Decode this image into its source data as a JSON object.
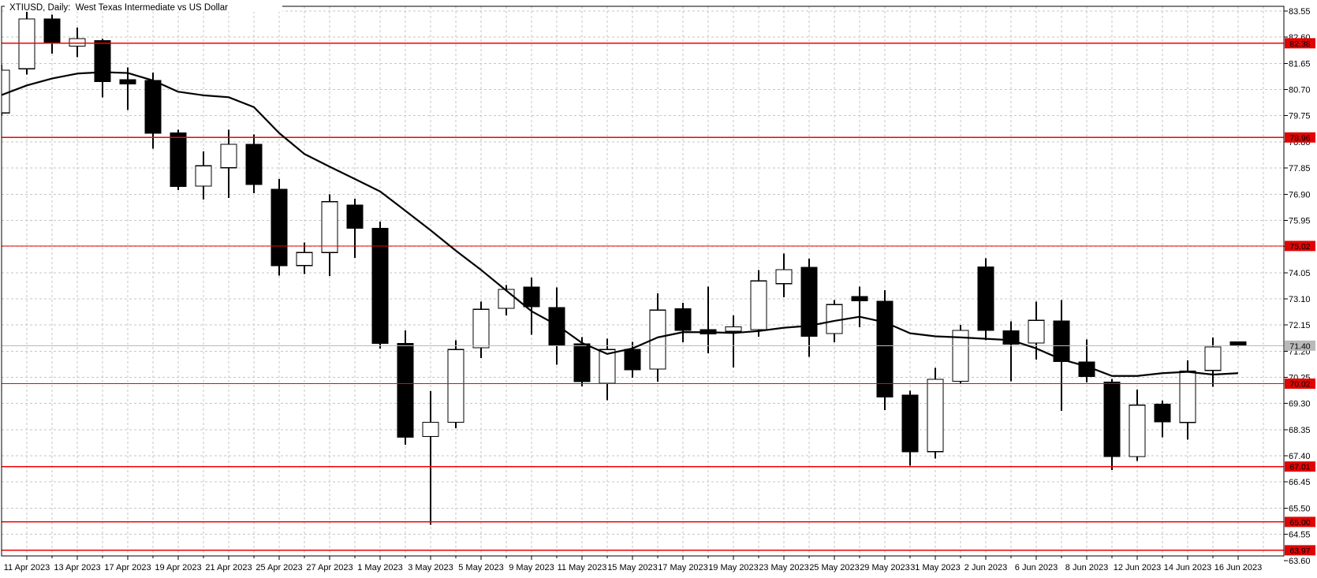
{
  "title": "XTIUSD, Daily:  West Texas Intermediate vs US Dollar",
  "header": {
    "symbol": "XTIUSD",
    "period": "Daily",
    "description": "West Texas Intermediate vs US Dollar"
  },
  "colors": {
    "background": "#ffffff",
    "grid": "#c6c6c6",
    "border": "#000000",
    "bull_candle_fill": "#ffffff",
    "bear_candle_fill": "#000000",
    "candle_outline": "#000000",
    "ma_line": "#000000",
    "level_line": "#f20202",
    "level_badge": "#e00505",
    "current_price_line": "#b9b9b9",
    "current_price_badge": "#b9b9b9",
    "badge_text": "#ffffff",
    "axis_text": "#000000"
  },
  "chart_data": {
    "type": "candlestick",
    "title": "XTIUSD, Daily:  West Texas Intermediate vs US Dollar",
    "symbol": "XTIUSD",
    "timeframe": "Daily",
    "grid": "dashed, every candle vertically and every 0.95 horizontally",
    "legend_position": "none",
    "ylim": [
      63.77,
      83.72
    ],
    "y_tick_step": 0.95,
    "y_tick_labels": [
      "83.55",
      "82.60",
      "81.65",
      "80.70",
      "79.75",
      "78.80",
      "77.85",
      "76.90",
      "75.95",
      "75.00",
      "74.05",
      "73.10",
      "72.15",
      "71.20",
      "70.25",
      "69.30",
      "68.35",
      "67.40",
      "66.45",
      "65.50",
      "64.55",
      "63.60"
    ],
    "x_labels": [
      "11 Apr 2023",
      "13 Apr 2023",
      "17 Apr 2023",
      "19 Apr 2023",
      "21 Apr 2023",
      "25 Apr 2023",
      "27 Apr 2023",
      "1 May 2023",
      "3 May 2023",
      "5 May 2023",
      "9 May 2023",
      "11 May 2023",
      "15 May 2023",
      "17 May 2023",
      "19 May 2023",
      "23 May 2023",
      "25 May 2023",
      "29 May 2023",
      "31 May 2023",
      "2 Jun 2023",
      "6 Jun 2023",
      "8 Jun 2023",
      "12 Jun 2023",
      "14 Jun 2023",
      "16 Jun 2023"
    ],
    "x_labels_note": "labels mark every second candle starting at candle index 1; candle index 0 is a partially visible candle clipped at the left edge",
    "level_lines": [
      {
        "label": "82.38",
        "price": 82.38
      },
      {
        "label": "78.96",
        "price": 78.96
      },
      {
        "label": "75.02",
        "price": 75.02
      },
      {
        "label": "70.02",
        "price": 70.02
      },
      {
        "label": "67.01",
        "price": 67.01
      },
      {
        "label": "65.00",
        "price": 65.0
      },
      {
        "label": "63.97",
        "price": 63.97
      }
    ],
    "current_price": {
      "label": "71.40",
      "price": 71.4
    },
    "ma_series": {
      "name": "moving-average",
      "values": [
        80.5,
        80.85,
        81.1,
        81.28,
        81.33,
        81.3,
        81.03,
        80.62,
        80.49,
        80.42,
        80.06,
        79.12,
        78.36,
        77.9,
        77.45,
        77.0,
        76.3,
        75.59,
        74.85,
        74.15,
        73.4,
        72.65,
        72.15,
        71.5,
        71.1,
        71.3,
        71.7,
        71.89,
        71.89,
        71.86,
        71.93,
        72.05,
        72.12,
        72.3,
        72.45,
        72.25,
        71.85,
        71.74,
        71.7,
        71.65,
        71.6,
        71.3,
        70.9,
        70.65,
        70.3,
        70.3,
        70.4,
        70.45,
        70.35,
        70.4
      ]
    },
    "candles": [
      {
        "o": 79.85,
        "h": 81.6,
        "l": 79.75,
        "c": 81.4,
        "partial": true
      },
      {
        "o": 81.45,
        "h": 83.53,
        "l": 81.25,
        "c": 83.26
      },
      {
        "o": 83.26,
        "h": 83.42,
        "l": 82.0,
        "c": 82.38
      },
      {
        "o": 82.28,
        "h": 82.95,
        "l": 81.88,
        "c": 82.55
      },
      {
        "o": 82.48,
        "h": 82.55,
        "l": 80.42,
        "c": 80.99
      },
      {
        "o": 81.05,
        "h": 81.5,
        "l": 79.95,
        "c": 80.9
      },
      {
        "o": 81.03,
        "h": 81.31,
        "l": 78.56,
        "c": 79.12
      },
      {
        "o": 79.12,
        "h": 79.24,
        "l": 77.05,
        "c": 77.18
      },
      {
        "o": 77.19,
        "h": 78.45,
        "l": 76.7,
        "c": 77.93
      },
      {
        "o": 77.86,
        "h": 79.24,
        "l": 76.76,
        "c": 78.71
      },
      {
        "o": 78.71,
        "h": 79.07,
        "l": 76.93,
        "c": 77.25
      },
      {
        "o": 77.07,
        "h": 77.45,
        "l": 73.95,
        "c": 74.31
      },
      {
        "o": 74.31,
        "h": 75.15,
        "l": 74.0,
        "c": 74.78
      },
      {
        "o": 74.78,
        "h": 76.9,
        "l": 73.93,
        "c": 76.63
      },
      {
        "o": 76.51,
        "h": 76.73,
        "l": 74.59,
        "c": 75.67
      },
      {
        "o": 75.66,
        "h": 75.9,
        "l": 71.3,
        "c": 71.48
      },
      {
        "o": 71.48,
        "h": 71.95,
        "l": 67.8,
        "c": 68.08
      },
      {
        "o": 68.1,
        "h": 69.75,
        "l": 64.9,
        "c": 68.62
      },
      {
        "o": 68.62,
        "h": 71.6,
        "l": 68.4,
        "c": 71.26
      },
      {
        "o": 71.32,
        "h": 73.0,
        "l": 70.95,
        "c": 72.72
      },
      {
        "o": 72.76,
        "h": 73.6,
        "l": 72.5,
        "c": 73.44
      },
      {
        "o": 73.52,
        "h": 73.87,
        "l": 71.8,
        "c": 72.81
      },
      {
        "o": 72.78,
        "h": 73.52,
        "l": 70.71,
        "c": 71.42
      },
      {
        "o": 71.47,
        "h": 71.71,
        "l": 69.92,
        "c": 70.09
      },
      {
        "o": 70.04,
        "h": 71.66,
        "l": 69.42,
        "c": 71.26
      },
      {
        "o": 71.27,
        "h": 71.54,
        "l": 70.23,
        "c": 70.52
      },
      {
        "o": 70.55,
        "h": 73.3,
        "l": 70.1,
        "c": 72.69
      },
      {
        "o": 72.74,
        "h": 72.96,
        "l": 71.52,
        "c": 71.96
      },
      {
        "o": 71.98,
        "h": 73.54,
        "l": 71.12,
        "c": 71.83
      },
      {
        "o": 71.92,
        "h": 72.5,
        "l": 70.61,
        "c": 72.08
      },
      {
        "o": 71.98,
        "h": 74.15,
        "l": 71.72,
        "c": 73.75
      },
      {
        "o": 73.65,
        "h": 74.75,
        "l": 73.15,
        "c": 74.16
      },
      {
        "o": 74.24,
        "h": 74.56,
        "l": 71.0,
        "c": 71.74
      },
      {
        "o": 71.84,
        "h": 73.06,
        "l": 71.52,
        "c": 72.89
      },
      {
        "o": 73.18,
        "h": 73.54,
        "l": 72.07,
        "c": 73.03
      },
      {
        "o": 73.01,
        "h": 73.41,
        "l": 69.06,
        "c": 69.54
      },
      {
        "o": 69.61,
        "h": 69.77,
        "l": 67.05,
        "c": 67.55
      },
      {
        "o": 67.55,
        "h": 70.6,
        "l": 67.3,
        "c": 70.18
      },
      {
        "o": 70.11,
        "h": 72.16,
        "l": 70.0,
        "c": 71.95
      },
      {
        "o": 74.26,
        "h": 74.58,
        "l": 71.6,
        "c": 71.95
      },
      {
        "o": 71.94,
        "h": 72.29,
        "l": 70.11,
        "c": 71.46
      },
      {
        "o": 71.5,
        "h": 73.0,
        "l": 70.9,
        "c": 72.32
      },
      {
        "o": 72.29,
        "h": 73.05,
        "l": 69.04,
        "c": 70.83
      },
      {
        "o": 70.81,
        "h": 71.63,
        "l": 70.07,
        "c": 70.28
      },
      {
        "o": 70.08,
        "h": 70.2,
        "l": 66.89,
        "c": 67.37
      },
      {
        "o": 67.37,
        "h": 69.81,
        "l": 67.21,
        "c": 69.24
      },
      {
        "o": 69.28,
        "h": 69.4,
        "l": 68.08,
        "c": 68.64
      },
      {
        "o": 68.61,
        "h": 70.86,
        "l": 67.99,
        "c": 70.47
      },
      {
        "o": 70.5,
        "h": 71.7,
        "l": 69.9,
        "c": 71.35
      },
      {
        "o": 71.54,
        "h": 71.56,
        "l": 71.36,
        "c": 71.4
      }
    ]
  }
}
